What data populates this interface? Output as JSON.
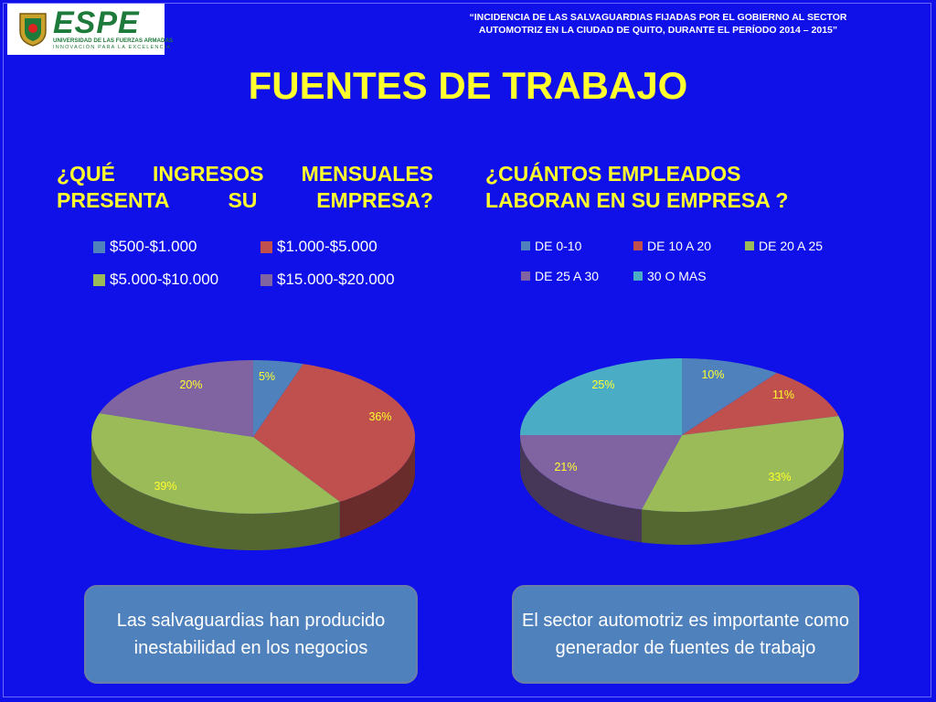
{
  "header": {
    "logo_text": "ESPE",
    "logo_subtitle": "UNIVERSIDAD DE LAS FUERZAS ARMADAS",
    "logo_tagline": "INNOVACIÓN PARA LA EXCELENCIA",
    "study_title_line1": "“INCIDENCIA DE LAS SALVAGUARDIAS FIJADAS POR EL GOBIERNO AL SECTOR",
    "study_title_line2": "AUTOMOTRIZ EN LA CIUDAD DE QUITO, DURANTE EL PERÍODO 2014 – 2015”"
  },
  "slide": {
    "title": "FUENTES DE TRABAJO",
    "question_left": "¿QUÉ INGRESOS MENSUALES PRESENTA SU EMPRESA?",
    "question_right": "¿CUÁNTOS EMPLEADOS LABORAN EN SU EMPRESA ?",
    "note_left": "Las salvaguardias han producido inestabilidad en los negocios",
    "note_right": "El sector automotriz es importante como generador de fuentes de trabajo"
  },
  "colors": {
    "background": "#1010e8",
    "title": "#ffff2e",
    "note_box": "#4f81bd"
  },
  "chart_data": [
    {
      "type": "pie",
      "title": "",
      "categories": [
        "$500-$1.000",
        "$1.000-$5.000",
        "$5.000-$10.000",
        "$15.000-$20.000"
      ],
      "values": [
        5,
        36,
        39,
        20
      ],
      "labels": [
        "5%",
        "36%",
        "39%",
        "20%"
      ],
      "colors": [
        "#4f81bd",
        "#c0504d",
        "#9bbb59",
        "#8064a2"
      ],
      "legend_position": "top",
      "style": "3d"
    },
    {
      "type": "pie",
      "title": "",
      "categories": [
        "DE 0-10",
        "DE 10 A 20",
        "DE 20 A 25",
        "DE 25 A 30",
        "30 O MAS"
      ],
      "values": [
        10,
        11,
        33,
        21,
        25
      ],
      "labels": [
        "10%",
        "11%",
        "33%",
        "21%",
        "25%"
      ],
      "colors": [
        "#4f81bd",
        "#c0504d",
        "#9bbb59",
        "#8064a2",
        "#4bacc6"
      ],
      "legend_position": "top",
      "style": "3d"
    }
  ]
}
